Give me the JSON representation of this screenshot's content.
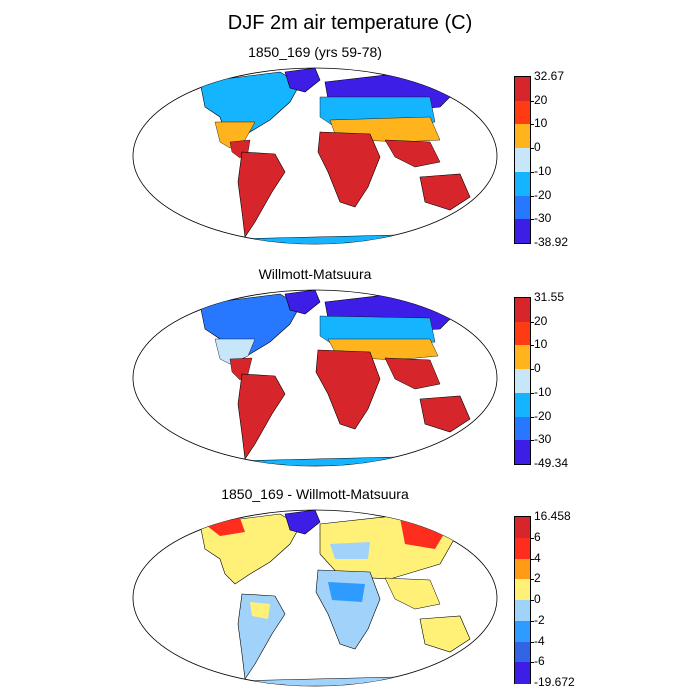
{
  "title": "DJF 2m air temperature (C)",
  "panels": [
    {
      "title": "1850_169 (yrs 59-78)",
      "colorbar": {
        "labels": [
          "32.67",
          "20",
          "10",
          "0",
          "-10",
          "-20",
          "-30",
          "-38.92"
        ],
        "colors": [
          "#d7262b",
          "#ff3b14",
          "#ffb41e",
          "#c8e6fa",
          "#14b4ff",
          "#2878ff",
          "#3c1ee6"
        ]
      }
    },
    {
      "title": "Willmott-Matsuura",
      "colorbar": {
        "labels": [
          "31.55",
          "20",
          "10",
          "0",
          "-10",
          "-20",
          "-30",
          "-49.34"
        ],
        "colors": [
          "#d7262b",
          "#ff3b14",
          "#ffb41e",
          "#c8e6fa",
          "#14b4ff",
          "#2878ff",
          "#3c1ee6"
        ]
      }
    },
    {
      "title": "1850_169 - Willmott-Matsuura",
      "colorbar": {
        "labels": [
          "16.458",
          "6",
          "4",
          "2",
          "0",
          "-2",
          "-4",
          "-6",
          "-19.672"
        ],
        "colors": [
          "#d7262b",
          "#ff2d1e",
          "#ff9b14",
          "#fff078",
          "#a0d2fa",
          "#2d9bff",
          "#3264e6",
          "#3c1ee6"
        ]
      }
    }
  ]
}
